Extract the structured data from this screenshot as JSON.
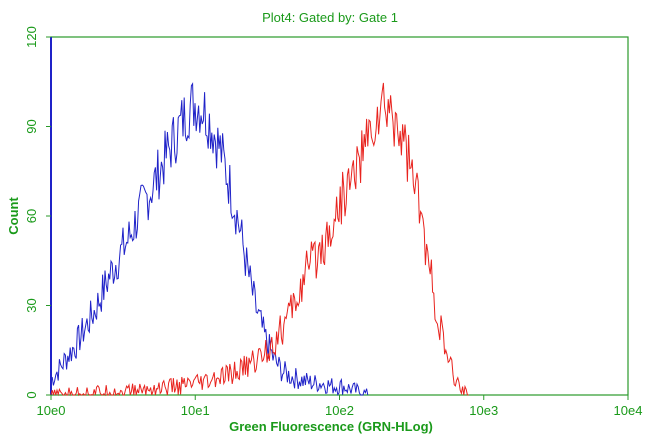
{
  "chart_data": {
    "type": "line",
    "title": "Plot4:  Gated by: Gate 1",
    "xlabel": "Green Fluorescence (GRN-HLog)",
    "ylabel": "Count",
    "x_scale": "log",
    "xlim": [
      1,
      10000
    ],
    "ylim": [
      0,
      120
    ],
    "x_ticks": [
      "10e0",
      "10e1",
      "10e2",
      "10e3",
      "10e4"
    ],
    "y_ticks": [
      "0",
      "30",
      "60",
      "90",
      "120"
    ],
    "grid": false,
    "legend": "none",
    "series": [
      {
        "color": "#1f22c8",
        "x": [
          1.0,
          1.15,
          1.3,
          1.5,
          1.7,
          2.0,
          2.3,
          2.6,
          3.0,
          3.5,
          4.0,
          4.6,
          5.3,
          6.0,
          7.0,
          8.0,
          9.0,
          10.0,
          11.5,
          13.0,
          15.0,
          17.0,
          20.0,
          23.0,
          26.0,
          30.0,
          35.0,
          40.0,
          47.0,
          55.0,
          65.0,
          75.0,
          90.0,
          105.0,
          120.0,
          140.0,
          160.0
        ],
        "y": [
          5,
          9,
          13,
          17,
          22,
          28,
          35,
          41,
          47,
          53,
          60,
          66,
          72,
          78,
          85,
          91,
          96,
          98,
          96,
          90,
          82,
          72,
          58,
          42,
          30,
          20,
          12,
          8,
          6,
          5,
          4,
          4,
          3,
          3,
          2,
          1,
          0
        ]
      },
      {
        "color": "#e8231e",
        "x": [
          1.0,
          2.0,
          3.0,
          5.0,
          8.0,
          12.0,
          16.0,
          20.0,
          25.0,
          30.0,
          35.0,
          40.0,
          45.0,
          50.0,
          55.0,
          60.0,
          70.0,
          80.0,
          90.0,
          100.0,
          110.0,
          125.0,
          140.0,
          160.0,
          180.0,
          200.0,
          220.0,
          250.0,
          280.0,
          320.0,
          360.0,
          400.0,
          450.0,
          500.0,
          560.0,
          630.0,
          700.0,
          800.0
        ],
        "y": [
          0,
          1,
          1,
          2,
          3,
          4,
          6,
          8,
          11,
          14,
          18,
          22,
          27,
          32,
          37,
          42,
          47,
          52,
          58,
          64,
          68,
          74,
          80,
          86,
          92,
          96,
          95,
          92,
          85,
          75,
          62,
          48,
          34,
          22,
          12,
          5,
          2,
          0
        ]
      }
    ]
  }
}
